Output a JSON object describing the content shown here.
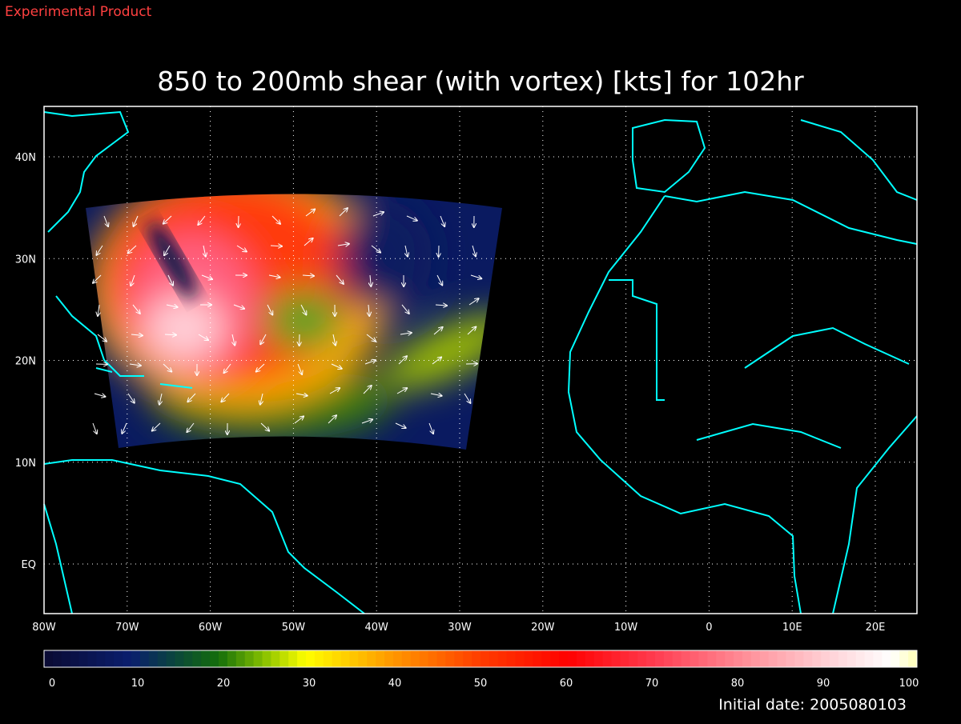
{
  "header": {
    "note": "Experimental Product",
    "title": "850 to 200mb shear (with vortex) [kts] for 102hr"
  },
  "map": {
    "xlabels": [
      "80W",
      "70W",
      "60W",
      "50W",
      "40W",
      "30W",
      "20W",
      "10W",
      "0",
      "10E",
      "20E"
    ],
    "ylabels": [
      "40N",
      "30N",
      "20N",
      "10N",
      "EQ"
    ]
  },
  "colorbar": {
    "ticks": [
      0,
      10,
      20,
      30,
      40,
      50,
      60,
      70,
      80,
      90,
      100
    ]
  },
  "footer": {
    "date": "Initial date: 2005080103"
  }
}
